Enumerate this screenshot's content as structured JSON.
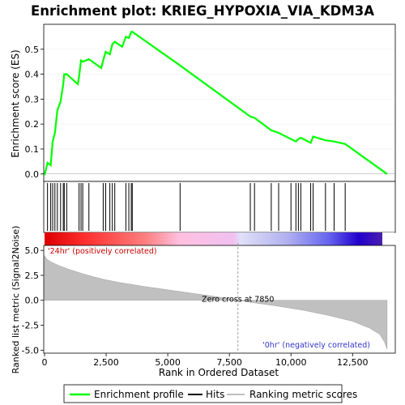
{
  "chart_data": {
    "type": "line",
    "title": "Enrichment plot: KRIEG_HYPOXIA_VIA_KDM3A",
    "xlabel": "Rank in Ordered Dataset",
    "es_panel": {
      "ylabel": "Enrichment score (ES)",
      "ylim": [
        -0.03,
        0.6
      ],
      "yticks": [
        "0.0",
        "0.1",
        "0.2",
        "0.3",
        "0.4",
        "0.5"
      ],
      "ytick_values": [
        0.0,
        0.1,
        0.2,
        0.3,
        0.4,
        0.5
      ],
      "series": [
        {
          "name": "Enrichment profile",
          "color": "#00ff00",
          "x": [
            0,
            120,
            250,
            330,
            420,
            520,
            650,
            760,
            800,
            900,
            1350,
            1400,
            1480,
            1550,
            1800,
            2300,
            2380,
            2480,
            2650,
            2750,
            2850,
            3150,
            3300,
            3420,
            3520,
            3560,
            5500,
            8350,
            8520,
            9200,
            9500,
            10000,
            10200,
            10300,
            10400,
            10800,
            10900,
            11400,
            11750,
            12200,
            13900
          ],
          "y": [
            -0.005,
            0.045,
            0.035,
            0.13,
            0.165,
            0.255,
            0.29,
            0.36,
            0.4,
            0.4,
            0.36,
            0.39,
            0.455,
            0.45,
            0.46,
            0.425,
            0.455,
            0.49,
            0.48,
            0.52,
            0.53,
            0.51,
            0.55,
            0.545,
            0.57,
            0.57,
            0.435,
            0.23,
            0.225,
            0.175,
            0.165,
            0.14,
            0.13,
            0.14,
            0.145,
            0.125,
            0.15,
            0.135,
            0.13,
            0.12,
            0.0
          ]
        }
      ]
    },
    "hits_panel": {
      "legend_label": "Hits",
      "hit_ranks": [
        120,
        250,
        330,
        420,
        520,
        650,
        760,
        800,
        900,
        1400,
        1480,
        1550,
        1800,
        2380,
        2480,
        2650,
        2750,
        2850,
        3300,
        3420,
        3520,
        3560,
        5500,
        8350,
        8520,
        9200,
        9500,
        10000,
        10200,
        10300,
        10400,
        10800,
        10900,
        11400,
        11750,
        12200
      ]
    },
    "metric_panel": {
      "ylabel": "Ranked list metric (Signal2Noise)",
      "ylim": [
        -5.3,
        5.5
      ],
      "yticks": [
        "-5.0",
        "-2.5",
        "0.0",
        "2.5",
        "5.0"
      ],
      "ytick_values": [
        -5.0,
        -2.5,
        0.0,
        2.5,
        5.0
      ],
      "legend_label": "Ranking metric scores",
      "zero_cross_label": "Zero cross at 7850",
      "zero_cross": 7850,
      "positive_label": "'24hr' (positively correlated)",
      "negative_label": "'0hr' (negatively correlated)",
      "positive_color": "#cc0000",
      "negative_color": "#3333cc",
      "curve_x": [
        0,
        100,
        300,
        600,
        1000,
        1500,
        2000,
        2500,
        3000,
        3500,
        4000,
        5000,
        6000,
        7000,
        7850,
        8500,
        9500,
        10500,
        11500,
        12500,
        13200,
        13600,
        13800,
        13900
      ],
      "curve_y": [
        4.5,
        4.1,
        3.8,
        3.45,
        3.1,
        2.7,
        2.35,
        2.05,
        1.8,
        1.6,
        1.4,
        1.05,
        0.7,
        0.35,
        0.0,
        -0.25,
        -0.6,
        -1.0,
        -1.5,
        -2.1,
        -2.8,
        -3.4,
        -4.2,
        -4.9
      ]
    },
    "xlim": [
      0,
      14200
    ],
    "xticks": [
      "0",
      "2,500",
      "5,000",
      "7,500",
      "10,000",
      "12,500"
    ],
    "xtick_values": [
      0,
      2500,
      5000,
      7500,
      10000,
      12500
    ]
  }
}
